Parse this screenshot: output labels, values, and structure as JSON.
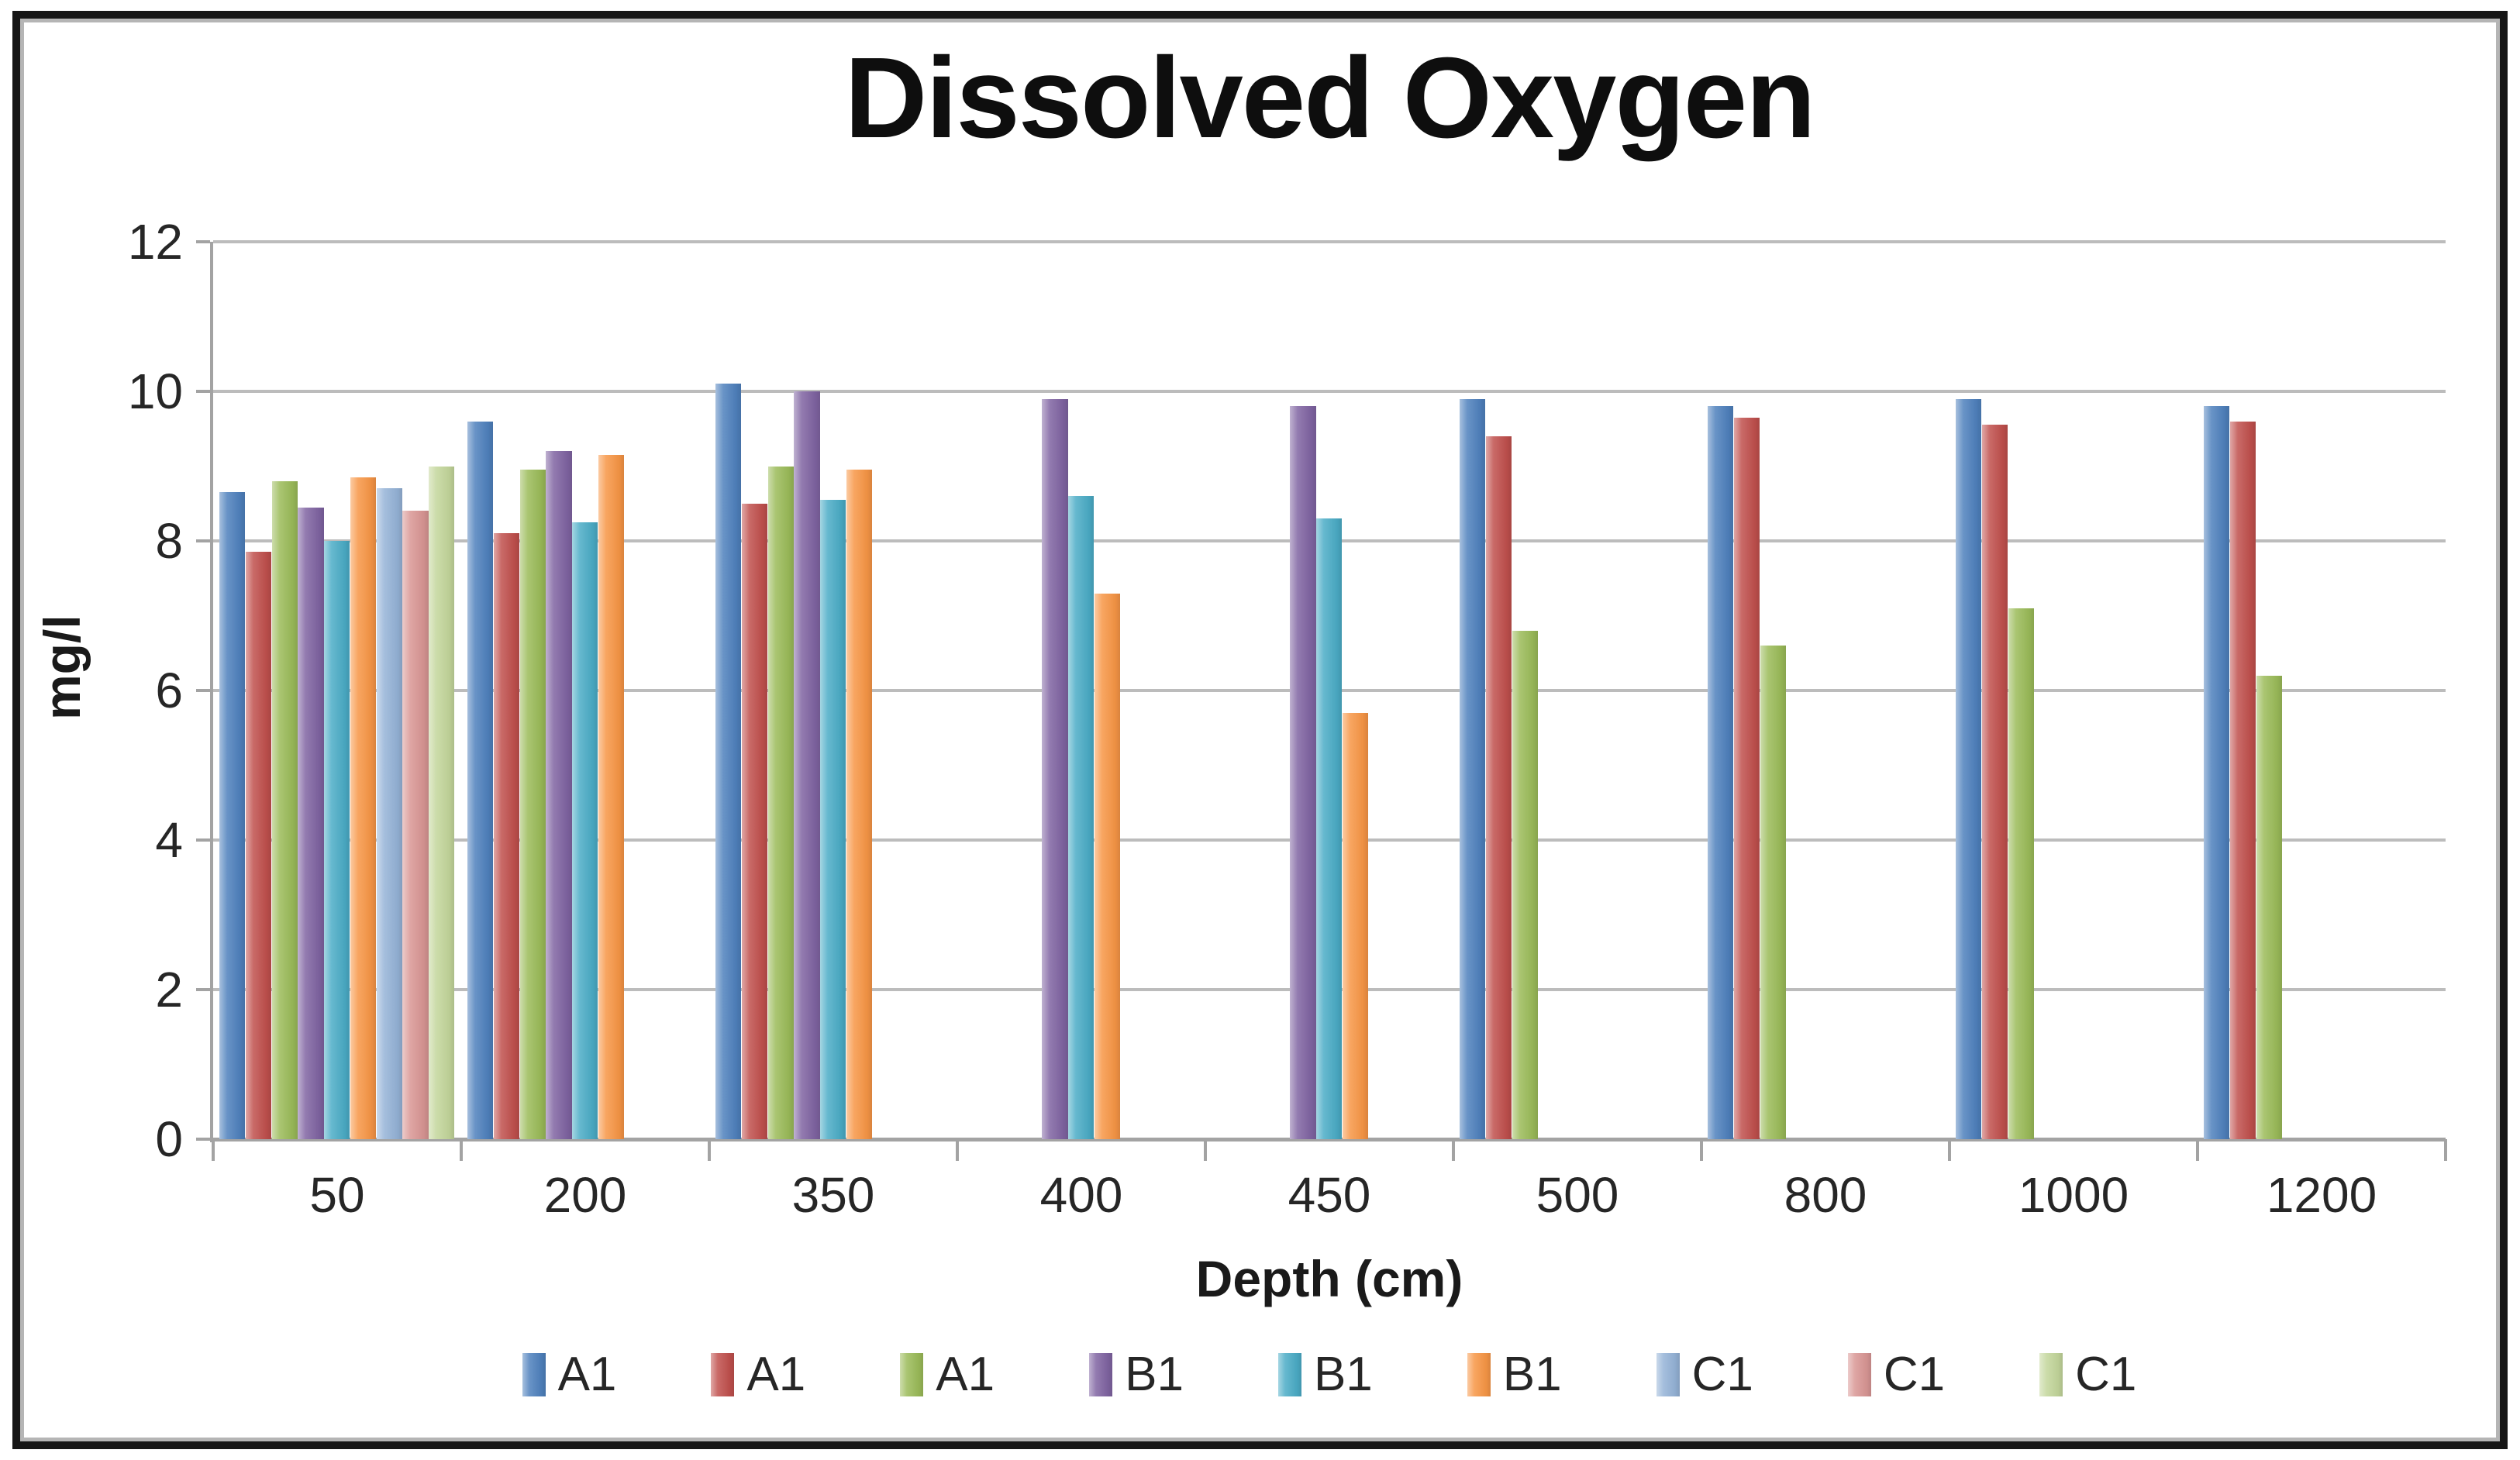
{
  "title": "Dissolved Oxygen",
  "chart_data": {
    "type": "bar",
    "title": "Dissolved Oxygen",
    "xlabel": "Depth (cm)",
    "ylabel": "mg/l",
    "ylim": [
      0,
      12
    ],
    "yticks": [
      0,
      2,
      4,
      6,
      8,
      10,
      12
    ],
    "grid": true,
    "legend_position": "bottom",
    "grid_color": "#bcbcbc",
    "axis_color": "#a3a3a3",
    "text_color": "#262626",
    "categories": [
      "50",
      "200",
      "350",
      "400",
      "450",
      "500",
      "800",
      "1000",
      "1200"
    ],
    "series": [
      {
        "name": "A1",
        "color": "#4F81BD",
        "values": [
          8.65,
          9.6,
          10.1,
          null,
          null,
          9.9,
          9.8,
          9.9,
          9.8
        ]
      },
      {
        "name": "A1",
        "color": "#C0504D",
        "values": [
          7.85,
          8.1,
          8.5,
          null,
          null,
          9.4,
          9.65,
          9.55,
          9.6
        ]
      },
      {
        "name": "A1",
        "color": "#9BBB59",
        "values": [
          8.8,
          8.95,
          9.0,
          null,
          null,
          6.8,
          6.6,
          7.1,
          6.2
        ]
      },
      {
        "name": "B1",
        "color": "#8064A2",
        "values": [
          8.45,
          9.2,
          10.0,
          9.9,
          9.8,
          null,
          null,
          null,
          null
        ]
      },
      {
        "name": "B1",
        "color": "#4BACC6",
        "values": [
          8.0,
          8.25,
          8.55,
          8.6,
          8.3,
          null,
          null,
          null,
          null
        ]
      },
      {
        "name": "B1",
        "color": "#F79646",
        "values": [
          8.85,
          9.15,
          8.95,
          7.3,
          5.7,
          null,
          null,
          null,
          null
        ]
      },
      {
        "name": "C1",
        "color": "#95B3D7",
        "values": [
          8.7,
          null,
          null,
          null,
          null,
          null,
          null,
          null,
          null
        ]
      },
      {
        "name": "C1",
        "color": "#D99694",
        "values": [
          8.4,
          null,
          null,
          null,
          null,
          null,
          null,
          null,
          null
        ]
      },
      {
        "name": "C1",
        "color": "#C3D69B",
        "values": [
          9.0,
          null,
          null,
          null,
          null,
          null,
          null,
          null,
          null
        ]
      }
    ]
  }
}
